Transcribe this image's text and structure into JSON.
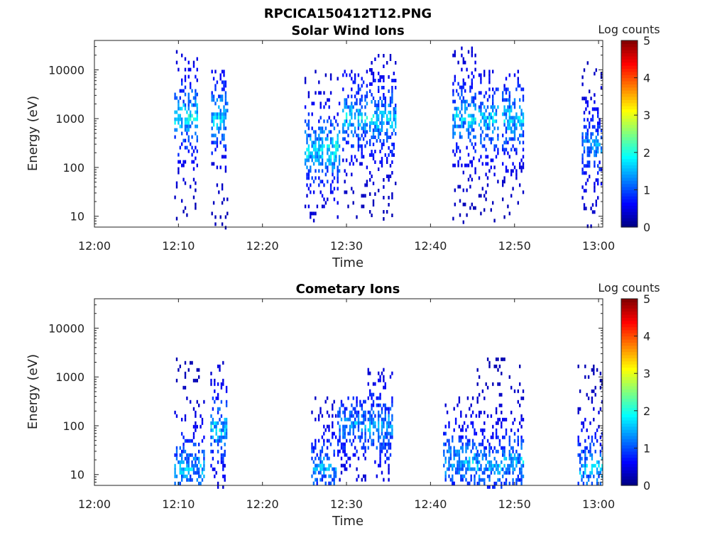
{
  "figure_title": "RPCICA150412T12.PNG",
  "chart_data": [
    {
      "type": "heatmap",
      "title": "Solar Wind Ions",
      "xlabel": "Time",
      "ylabel": "Energy (eV)",
      "x_ticks": [
        "12:00",
        "12:10",
        "12:20",
        "12:30",
        "12:40",
        "12:50",
        "13:00"
      ],
      "y_ticks": [
        "10",
        "100",
        "1000",
        "10000"
      ],
      "y_scale": "log",
      "ylim": [
        6,
        40000
      ],
      "colorbar": {
        "label": "Log counts",
        "ticks": [
          "0",
          "1",
          "2",
          "3",
          "4",
          "5"
        ],
        "range": [
          0,
          5
        ],
        "colormap": "jet"
      },
      "bursts": [
        {
          "start": "12:09.5",
          "end": "12:12.3",
          "energy_range": [
            8,
            30000
          ],
          "peak_energy": 1200,
          "peak_log_counts": 2.2
        },
        {
          "start": "12:13.9",
          "end": "12:15.8",
          "energy_range": [
            6,
            10000
          ],
          "peak_energy": 1200,
          "peak_log_counts": 2.1
        },
        {
          "start": "12:25.0",
          "end": "12:29.2",
          "energy_range": [
            8,
            10000
          ],
          "peak_energy": 250,
          "peak_log_counts": 2.2
        },
        {
          "start": "12:29.5",
          "end": "12:32.5",
          "energy_range": [
            8,
            10000
          ],
          "peak_energy": 1100,
          "peak_log_counts": 2.0
        },
        {
          "start": "12:32.7",
          "end": "12:35.8",
          "energy_range": [
            8,
            25000
          ],
          "peak_energy": 1100,
          "peak_log_counts": 2.0
        },
        {
          "start": "12:42.6",
          "end": "12:45.3",
          "energy_range": [
            8,
            30000
          ],
          "peak_energy": 1100,
          "peak_log_counts": 2.0
        },
        {
          "start": "12:45.7",
          "end": "12:48.0",
          "energy_range": [
            8,
            10000
          ],
          "peak_energy": 1100,
          "peak_log_counts": 2.0
        },
        {
          "start": "12:48.5",
          "end": "12:51.0",
          "energy_range": [
            8,
            10000
          ],
          "peak_energy": 1100,
          "peak_log_counts": 2.0
        },
        {
          "start": "12:58.0",
          "end": "13:00.4",
          "energy_range": [
            6,
            15000
          ],
          "peak_energy": 300,
          "peak_log_counts": 1.6
        }
      ]
    },
    {
      "type": "heatmap",
      "title": "Cometary Ions",
      "xlabel": "Time",
      "ylabel": "Energy (eV)",
      "x_ticks": [
        "12:00",
        "12:10",
        "12:20",
        "12:30",
        "12:40",
        "12:50",
        "13:00"
      ],
      "y_ticks": [
        "10",
        "100",
        "1000",
        "10000"
      ],
      "y_scale": "log",
      "ylim": [
        6,
        40000
      ],
      "colorbar": {
        "label": "Log counts",
        "ticks": [
          "0",
          "1",
          "2",
          "3",
          "4",
          "5"
        ],
        "range": [
          0,
          5
        ],
        "colormap": "jet"
      },
      "bursts": [
        {
          "start": "12:09.5",
          "end": "12:13.0",
          "energy_range": [
            7,
            2500
          ],
          "peak_energy": 15,
          "peak_log_counts": 1.8
        },
        {
          "start": "12:13.8",
          "end": "12:15.8",
          "energy_range": [
            6,
            2500
          ],
          "peak_energy": 100,
          "peak_log_counts": 2.0
        },
        {
          "start": "12:25.8",
          "end": "12:28.8",
          "energy_range": [
            7,
            400
          ],
          "peak_energy": 15,
          "peak_log_counts": 1.7
        },
        {
          "start": "12:28.9",
          "end": "12:32.2",
          "energy_range": [
            7,
            400
          ],
          "peak_energy": 120,
          "peak_log_counts": 1.6
        },
        {
          "start": "12:32.5",
          "end": "12:35.5",
          "energy_range": [
            7,
            1800
          ],
          "peak_energy": 100,
          "peak_log_counts": 1.8
        },
        {
          "start": "12:41.5",
          "end": "12:45.5",
          "energy_range": [
            7,
            400
          ],
          "peak_energy": 20,
          "peak_log_counts": 1.8
        },
        {
          "start": "12:45.5",
          "end": "12:48.5",
          "energy_range": [
            6,
            2500
          ],
          "peak_energy": 15,
          "peak_log_counts": 1.8
        },
        {
          "start": "12:48.5",
          "end": "12:51.0",
          "energy_range": [
            7,
            2500
          ],
          "peak_energy": 20,
          "peak_log_counts": 1.8
        },
        {
          "start": "12:57.5",
          "end": "13:00.5",
          "energy_range": [
            7,
            2500
          ],
          "peak_energy": 15,
          "peak_log_counts": 1.8
        }
      ]
    }
  ]
}
